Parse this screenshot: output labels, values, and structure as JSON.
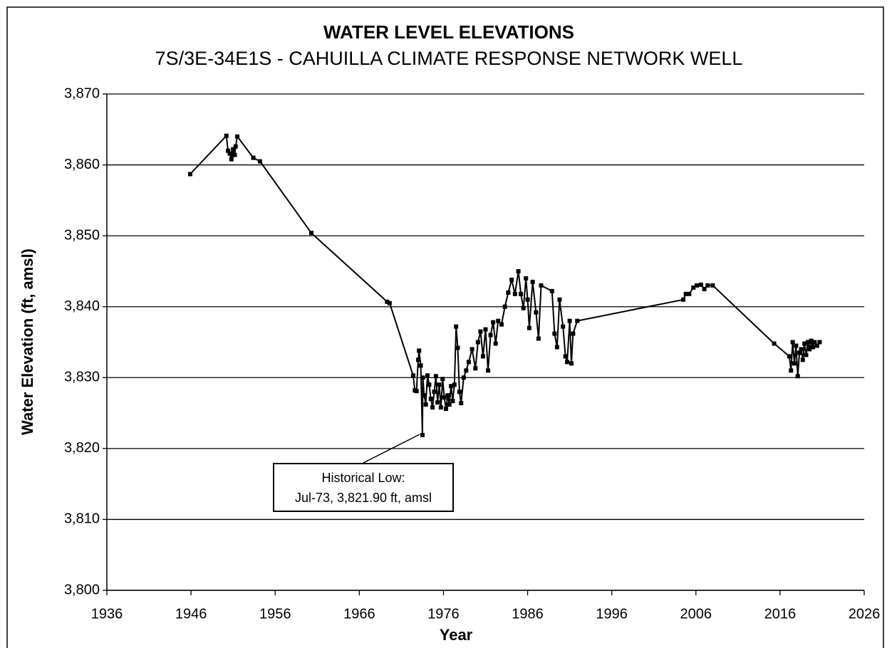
{
  "chart_data": {
    "type": "line",
    "title": "WATER LEVEL ELEVATIONS",
    "subtitle": "7S/3E-34E1S - CAHUILLA CLIMATE RESPONSE NETWORK WELL",
    "x_label": "Year",
    "y_label": "Water Elevation (ft, amsl)",
    "annotation": {
      "lines": [
        "Historical Low:",
        "Jul-73, 3,821.90 ft, amsl"
      ]
    },
    "xlim": [
      1936,
      2026
    ],
    "xticks": [
      1936,
      1946,
      1956,
      1966,
      1976,
      1986,
      1996,
      2006,
      2016,
      2026
    ],
    "ylim": [
      3800,
      3870
    ],
    "yticks": [
      {
        "value": 3800,
        "label": "3,800"
      },
      {
        "value": 3810,
        "label": "3,810"
      },
      {
        "value": 3820,
        "label": "3,820"
      },
      {
        "value": 3830,
        "label": "3,830"
      },
      {
        "value": 3840,
        "label": "3,840"
      },
      {
        "value": 3850,
        "label": "3,850"
      },
      {
        "value": 3860,
        "label": "3,860"
      },
      {
        "value": 3870,
        "label": "3,870"
      }
    ],
    "grid": true,
    "series": [
      {
        "color": "#000000",
        "x": [
          1945.9,
          1950.2,
          1950.4,
          1950.6,
          1950.8,
          1951.0,
          1951.2,
          1951.3,
          1951.5,
          1953.4,
          1954.2,
          1960.3,
          1969.3,
          1969.6,
          1972.4,
          1972.6,
          1972.8,
          1973.0,
          1973.1,
          1973.3,
          1973.5,
          1973.55,
          1973.7,
          1973.9,
          1974.1,
          1974.3,
          1974.5,
          1974.7,
          1974.9,
          1975.1,
          1975.3,
          1975.5,
          1975.7,
          1975.9,
          1976.1,
          1976.3,
          1976.5,
          1976.7,
          1976.9,
          1977.1,
          1977.3,
          1977.5,
          1977.7,
          1977.9,
          1978.1,
          1978.4,
          1978.7,
          1979.0,
          1979.4,
          1979.8,
          1980.1,
          1980.4,
          1980.7,
          1981.0,
          1981.3,
          1981.6,
          1981.9,
          1982.2,
          1982.5,
          1982.9,
          1983.3,
          1983.7,
          1984.1,
          1984.5,
          1984.9,
          1985.2,
          1985.5,
          1985.8,
          1986.0,
          1986.2,
          1986.6,
          1987.0,
          1987.3,
          1987.6,
          1988.9,
          1989.2,
          1989.5,
          1989.8,
          1990.2,
          1990.5,
          1990.7,
          1991.0,
          1991.2,
          1991.4,
          1991.9,
          2004.5,
          2004.8,
          2005.2,
          2005.7,
          2006.1,
          2006.6,
          2007.0,
          2007.4,
          2008.0,
          2015.3,
          2017.1,
          2017.3,
          2017.5,
          2017.7,
          2017.9,
          2018.1,
          2018.3,
          2018.5,
          2018.7,
          2018.9,
          2019.1,
          2019.3,
          2019.5,
          2019.7,
          2019.9,
          2020.1,
          2020.4,
          2020.7
        ],
        "values": [
          3858.7,
          3864.1,
          3862.0,
          3861.6,
          3860.8,
          3862.2,
          3861.4,
          3862.6,
          3864.0,
          3861.0,
          3860.5,
          3850.4,
          3840.7,
          3840.5,
          3830.3,
          3828.2,
          3828.1,
          3832.5,
          3833.8,
          3831.7,
          3821.9,
          3830.0,
          3827.5,
          3826.2,
          3830.3,
          3829.0,
          3827.0,
          3825.8,
          3828.0,
          3830.2,
          3826.5,
          3829.0,
          3825.8,
          3829.8,
          3827.2,
          3825.6,
          3827.5,
          3826.2,
          3828.8,
          3826.7,
          3829.0,
          3837.2,
          3834.2,
          3828.0,
          3826.4,
          3830.0,
          3831.0,
          3832.2,
          3834.0,
          3831.3,
          3835.0,
          3836.5,
          3833.0,
          3836.8,
          3831.0,
          3836.0,
          3837.8,
          3834.8,
          3838.0,
          3837.5,
          3840.0,
          3842.0,
          3843.8,
          3841.8,
          3845.0,
          3841.8,
          3839.8,
          3844.0,
          3841.0,
          3837.0,
          3843.5,
          3839.2,
          3835.5,
          3843.0,
          3842.2,
          3836.2,
          3834.3,
          3841.0,
          3837.2,
          3833.0,
          3832.2,
          3838.0,
          3832.0,
          3836.2,
          3838.0,
          3841.0,
          3841.8,
          3841.8,
          3842.7,
          3843.0,
          3843.1,
          3842.5,
          3843.0,
          3843.0,
          3834.8,
          3833.0,
          3831.0,
          3835.0,
          3832.0,
          3834.5,
          3830.2,
          3833.5,
          3834.0,
          3832.5,
          3834.8,
          3833.2,
          3835.0,
          3834.0,
          3835.2,
          3834.3,
          3835.0,
          3834.5,
          3835.0
        ]
      }
    ]
  }
}
